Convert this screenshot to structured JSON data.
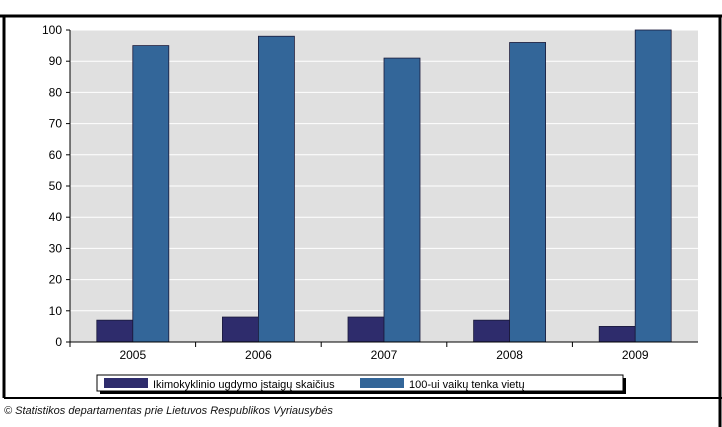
{
  "chart_data": {
    "type": "bar",
    "categories": [
      "2005",
      "2006",
      "2007",
      "2008",
      "2009"
    ],
    "series": [
      {
        "name": "Ikimokyklinio ugdymo įstaigų skaičius",
        "values": [
          7,
          8,
          8,
          7,
          5
        ],
        "color": "#2e2c6c"
      },
      {
        "name": "100-ui vaikų tenka vietų",
        "values": [
          95,
          98,
          91,
          96,
          100
        ],
        "color": "#336699"
      }
    ],
    "ylim": [
      0,
      100
    ],
    "yticks": [
      "0",
      "10",
      "20",
      "30",
      "40",
      "50",
      "60",
      "70",
      "80",
      "90",
      "100"
    ],
    "grid": true,
    "legend_position": "bottom",
    "plot_background": "#e0e0e0"
  },
  "footer": {
    "source": "© Statistikos departamentas prie Lietuvos Respublikos Vyriausybės"
  }
}
